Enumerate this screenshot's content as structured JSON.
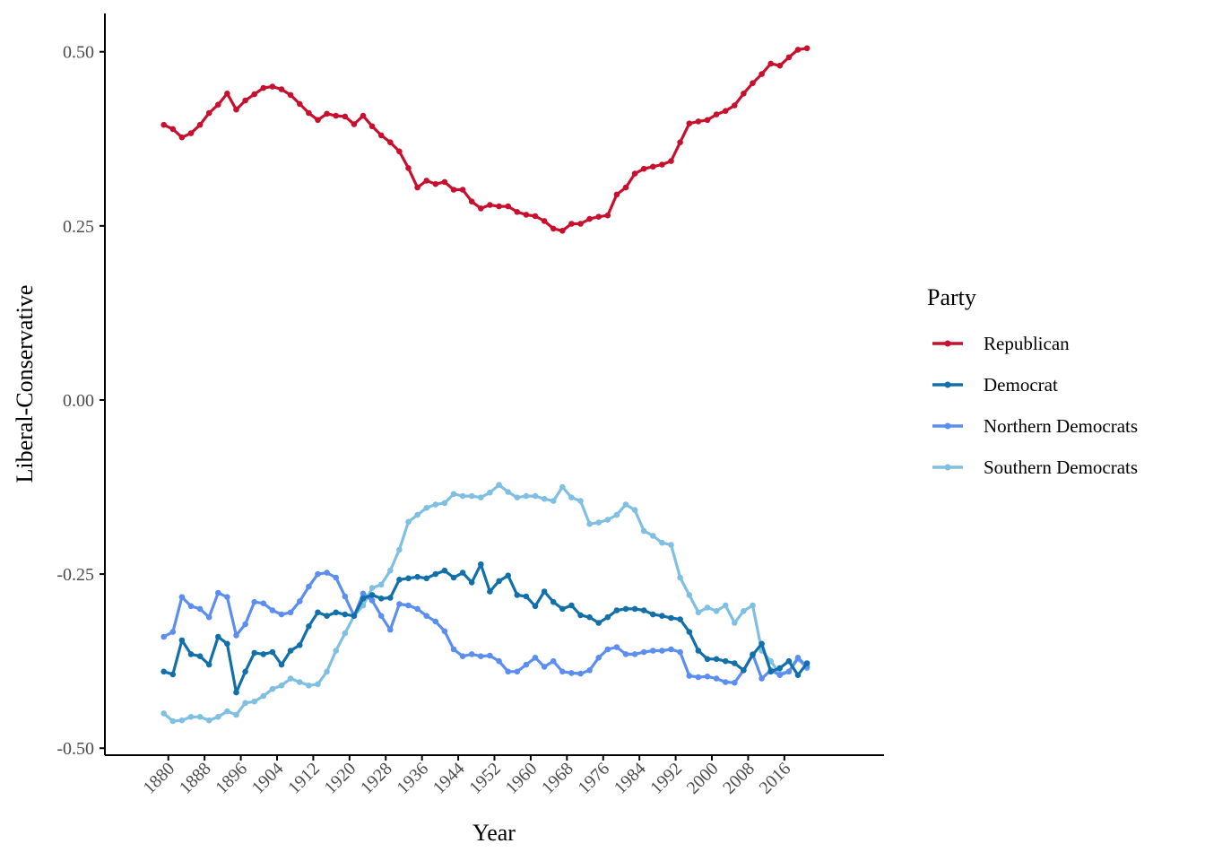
{
  "chart_data": {
    "type": "line",
    "xlabel": "Year",
    "ylabel": "Liberal-Conservative",
    "xlim": [
      1866,
      2038
    ],
    "ylim": [
      -0.51,
      0.555
    ],
    "x_ticks": [
      "1880",
      "1888",
      "1896",
      "1904",
      "1912",
      "1920",
      "1928",
      "1936",
      "1944",
      "1952",
      "1960",
      "1968",
      "1976",
      "1984",
      "1992",
      "2000",
      "2008",
      "2016"
    ],
    "y_ticks": [
      "0.50",
      "0.25",
      "0.00",
      "-0.25",
      "-0.50"
    ],
    "grid": false,
    "legend": {
      "title": "Party",
      "position": "right"
    },
    "x": [
      1879,
      1881,
      1883,
      1885,
      1887,
      1889,
      1891,
      1893,
      1895,
      1897,
      1899,
      1901,
      1903,
      1905,
      1907,
      1909,
      1911,
      1913,
      1915,
      1917,
      1919,
      1921,
      1923,
      1925,
      1927,
      1929,
      1931,
      1933,
      1935,
      1937,
      1939,
      1941,
      1943,
      1945,
      1947,
      1949,
      1951,
      1953,
      1955,
      1957,
      1959,
      1961,
      1963,
      1965,
      1967,
      1969,
      1971,
      1973,
      1975,
      1977,
      1979,
      1981,
      1983,
      1985,
      1987,
      1989,
      1991,
      1993,
      1995,
      1997,
      1999,
      2001,
      2003,
      2005,
      2007,
      2009,
      2011,
      2013,
      2015,
      2017,
      2019,
      2021
    ],
    "series": [
      {
        "name": "Republican",
        "color": "#c8102e",
        "values": [
          0.395,
          0.389,
          0.377,
          0.383,
          0.395,
          0.412,
          0.424,
          0.44,
          0.417,
          0.43,
          0.439,
          0.448,
          0.45,
          0.446,
          0.438,
          0.425,
          0.412,
          0.402,
          0.411,
          0.408,
          0.407,
          0.396,
          0.408,
          0.393,
          0.38,
          0.37,
          0.357,
          0.333,
          0.305,
          0.315,
          0.31,
          0.313,
          0.302,
          0.302,
          0.285,
          0.275,
          0.28,
          0.278,
          0.278,
          0.27,
          0.266,
          0.264,
          0.257,
          0.246,
          0.243,
          0.253,
          0.253,
          0.26,
          0.263,
          0.265,
          0.295,
          0.305,
          0.325,
          0.332,
          0.335,
          0.338,
          0.343,
          0.37,
          0.397,
          0.4,
          0.402,
          0.41,
          0.415,
          0.423,
          0.44,
          0.455,
          0.468,
          0.483,
          0.48,
          0.492,
          0.503,
          0.505
        ]
      },
      {
        "name": "Democrat",
        "color": "#1170aa",
        "values": [
          -0.39,
          -0.394,
          -0.345,
          -0.365,
          -0.368,
          -0.38,
          -0.34,
          -0.35,
          -0.42,
          -0.39,
          -0.363,
          -0.365,
          -0.362,
          -0.38,
          -0.36,
          -0.352,
          -0.325,
          -0.305,
          -0.31,
          -0.305,
          -0.308,
          -0.31,
          -0.285,
          -0.28,
          -0.285,
          -0.284,
          -0.258,
          -0.256,
          -0.254,
          -0.256,
          -0.25,
          -0.245,
          -0.255,
          -0.248,
          -0.262,
          -0.236,
          -0.275,
          -0.26,
          -0.252,
          -0.28,
          -0.282,
          -0.296,
          -0.275,
          -0.29,
          -0.3,
          -0.295,
          -0.309,
          -0.312,
          -0.32,
          -0.312,
          -0.302,
          -0.3,
          -0.3,
          -0.302,
          -0.308,
          -0.31,
          -0.313,
          -0.315,
          -0.333,
          -0.36,
          -0.372,
          -0.372,
          -0.375,
          -0.378,
          -0.388,
          -0.366,
          -0.35,
          -0.39,
          -0.385,
          -0.375,
          -0.395,
          -0.378
        ]
      },
      {
        "name": "Northern Democrats",
        "color": "#5b8ef0",
        "values": [
          -0.34,
          -0.333,
          -0.283,
          -0.296,
          -0.3,
          -0.312,
          -0.277,
          -0.283,
          -0.338,
          -0.322,
          -0.29,
          -0.292,
          -0.302,
          -0.308,
          -0.305,
          -0.289,
          -0.268,
          -0.25,
          -0.248,
          -0.255,
          -0.282,
          -0.31,
          -0.278,
          -0.288,
          -0.31,
          -0.33,
          -0.293,
          -0.295,
          -0.3,
          -0.31,
          -0.318,
          -0.332,
          -0.358,
          -0.368,
          -0.365,
          -0.368,
          -0.367,
          -0.375,
          -0.39,
          -0.39,
          -0.38,
          -0.37,
          -0.383,
          -0.375,
          -0.39,
          -0.392,
          -0.393,
          -0.388,
          -0.37,
          -0.358,
          -0.355,
          -0.365,
          -0.365,
          -0.362,
          -0.36,
          -0.36,
          -0.358,
          -0.362,
          -0.396,
          -0.398,
          -0.397,
          -0.4,
          -0.405,
          -0.406,
          -0.388,
          -0.365,
          -0.4,
          -0.388,
          -0.395,
          -0.39,
          -0.37,
          -0.383
        ]
      },
      {
        "name": "Southern Democrats",
        "color": "#7fbfe2",
        "values": [
          -0.45,
          -0.461,
          -0.46,
          -0.455,
          -0.455,
          -0.46,
          -0.455,
          -0.447,
          -0.452,
          -0.435,
          -0.433,
          -0.425,
          -0.415,
          -0.41,
          -0.4,
          -0.405,
          -0.41,
          -0.408,
          -0.39,
          -0.36,
          -0.335,
          -0.31,
          -0.295,
          -0.27,
          -0.265,
          -0.245,
          -0.215,
          -0.175,
          -0.165,
          -0.155,
          -0.15,
          -0.148,
          -0.135,
          -0.138,
          -0.138,
          -0.14,
          -0.133,
          -0.122,
          -0.132,
          -0.14,
          -0.138,
          -0.138,
          -0.142,
          -0.145,
          -0.125,
          -0.14,
          -0.145,
          -0.178,
          -0.176,
          -0.172,
          -0.165,
          -0.15,
          -0.158,
          -0.188,
          -0.195,
          -0.205,
          -0.208,
          -0.255,
          -0.28,
          -0.305,
          -0.298,
          -0.303,
          -0.295,
          -0.32,
          -0.303,
          -0.295,
          -0.36,
          -0.375,
          -0.393,
          -0.39,
          -0.372,
          -0.385
        ]
      }
    ]
  }
}
